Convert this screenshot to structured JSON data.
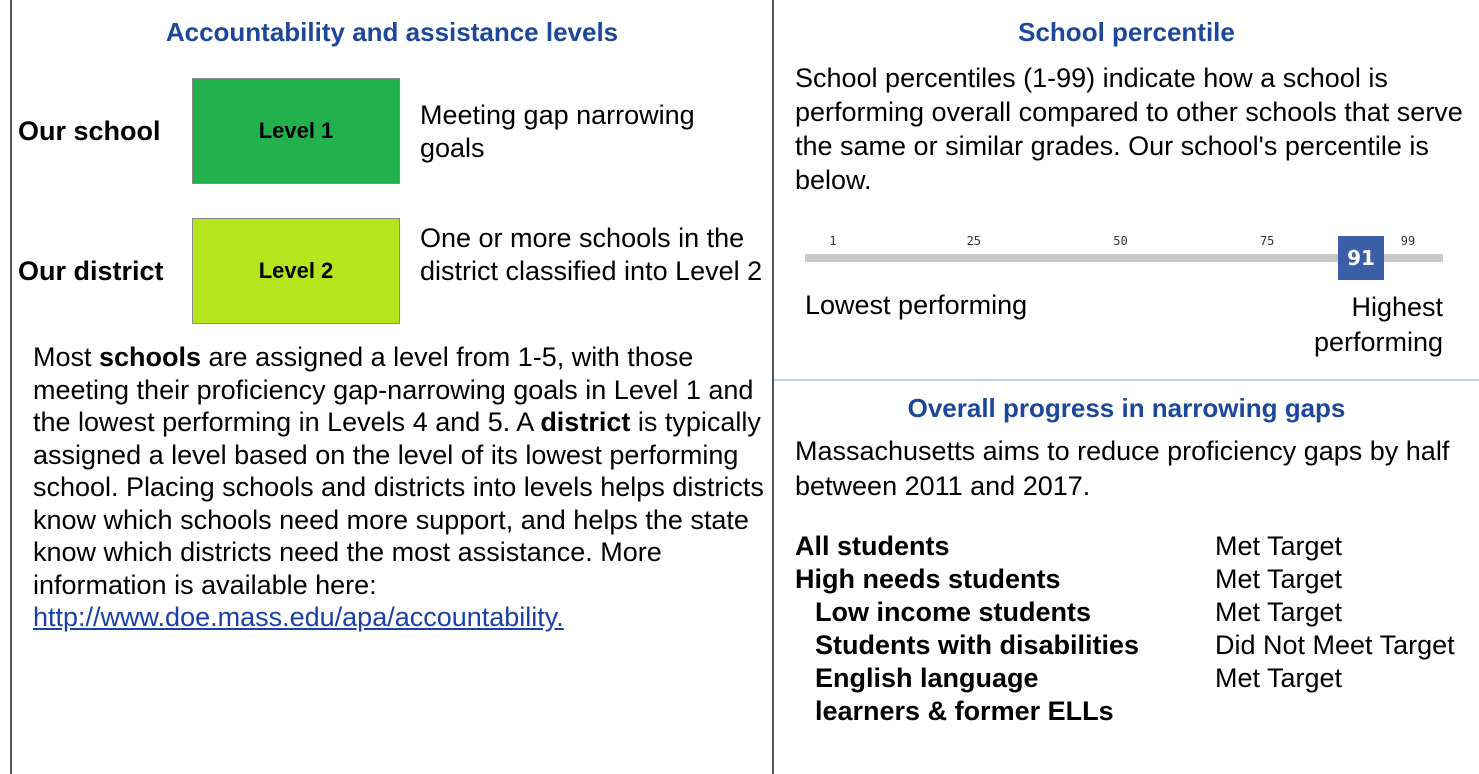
{
  "left": {
    "title": "Accountability and assistance levels",
    "levels": [
      {
        "label": "Our school",
        "badge": "Level 1",
        "description": "Meeting gap narrowing goals"
      },
      {
        "label": "Our district",
        "badge": "Level 2",
        "description": "One or more schools in the district classified into Level 2"
      }
    ],
    "paragraph": [
      "Most ",
      "schools",
      " are assigned a level from 1-5, with those meeting their proficiency gap-narrowing goals in Level 1 and the lowest performing in Levels 4 and 5. A ",
      "district",
      " is typically assigned a level based on the level of its lowest performing school. Placing schools and districts into levels helps districts know which schools need more support, and helps the state know which districts need the most assistance. More information is available here:"
    ],
    "link": "http://www.doe.mass.edu/apa/accountability."
  },
  "percentile": {
    "title": "School percentile",
    "description": "School percentiles (1-99) indicate how a school is performing overall compared to other schools that serve the same or similar grades. Our school's percentile is below.",
    "ticks": [
      1,
      25,
      50,
      75,
      99
    ],
    "value": 91,
    "low_label": "Lowest performing",
    "high_label": "Highest performing"
  },
  "progress": {
    "title": "Overall progress in narrowing gaps",
    "description": "Massachusetts aims to reduce proficiency gaps by half between 2011 and 2017.",
    "rows": [
      {
        "label": "All students",
        "status": "Met Target"
      },
      {
        "label": "High needs students",
        "status": "Met Target",
        "subgroups": [
          {
            "label": "Low income students",
            "status": "Met Target"
          },
          {
            "label": "Students with disabilities",
            "status": "Did Not Meet Target"
          },
          {
            "label": "English language learners & former ELLs",
            "status": "Met Target"
          }
        ]
      }
    ]
  }
}
